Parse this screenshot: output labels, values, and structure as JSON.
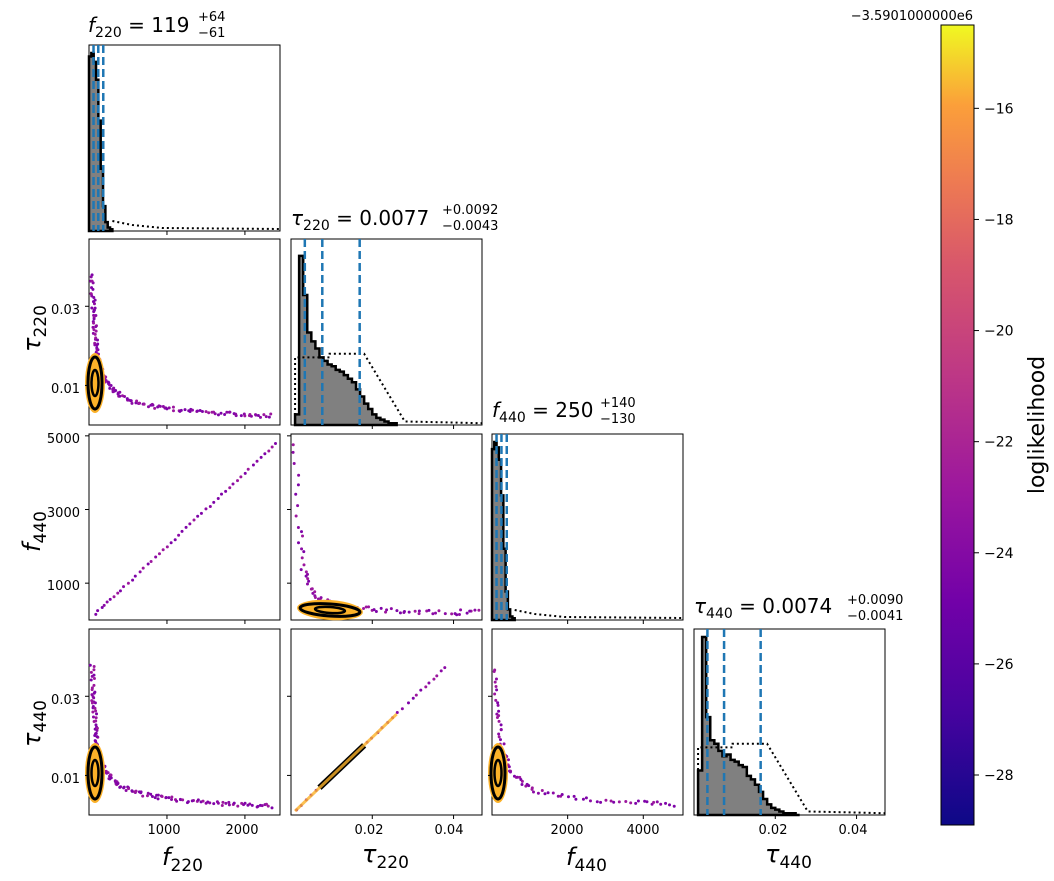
{
  "figure": {
    "colorbar": {
      "label": "loglikelihood",
      "offset_text": "−3.5901000000e6",
      "ticks": [
        "−16",
        "−18",
        "−20",
        "−22",
        "−24",
        "−26",
        "−28"
      ],
      "tick_values": [
        -16,
        -18,
        -20,
        -22,
        -24,
        -26,
        -28
      ],
      "range": [
        -28.9,
        -14.5
      ],
      "colormap": "plasma"
    },
    "axis_labels": {
      "f220_base": "f",
      "f220_sub": "220",
      "tau220_base": "τ",
      "tau220_sub": "220",
      "f440_base": "f",
      "f440_sub": "440",
      "tau440_base": "τ",
      "tau440_sub": "440"
    },
    "titles": {
      "f220": {
        "base": "f",
        "sub": "220",
        "eq": " = ",
        "value": "119",
        "plus": "+64",
        "minus": "−61"
      },
      "tau220": {
        "base": "τ",
        "sub": "220",
        "eq": " = ",
        "value": "0.0077",
        "plus": "+0.0092",
        "minus": "−0.0043"
      },
      "f440": {
        "base": "f",
        "sub": "440",
        "eq": " = ",
        "value": "250",
        "plus": "+140",
        "minus": "−130"
      },
      "tau440": {
        "base": "τ",
        "sub": "440",
        "eq": " = ",
        "value": "0.0074",
        "plus": "+0.0090",
        "minus": "−0.0041"
      }
    },
    "tick_labels": {
      "f220_x": [
        "1000",
        "2000"
      ],
      "tau220_x": [
        "0.02",
        "0.04"
      ],
      "f440_x": [
        "2000",
        "4000"
      ],
      "tau440_x": [
        "0.02",
        "0.04"
      ],
      "tau220_y": [
        "0.03",
        "0.01"
      ],
      "f440_y": [
        "5000",
        "3000",
        "1000"
      ],
      "tau440_y": [
        "0.03",
        "0.01"
      ]
    }
  },
  "chart_data": {
    "type": "corner",
    "parameters": [
      "f220",
      "tau220",
      "f440",
      "tau440"
    ],
    "ranges": {
      "f220": [
        0,
        2450
      ],
      "tau220": [
        0.0,
        0.047
      ],
      "f440": [
        0,
        5050
      ],
      "tau440": [
        0.0,
        0.047
      ]
    },
    "medians": {
      "f220": 119,
      "tau220": 0.0077,
      "f440": 250,
      "tau440": 0.0074
    },
    "credible_intervals": {
      "f220": [
        58,
        183
      ],
      "tau220": [
        0.0034,
        0.0169
      ],
      "f440": [
        120,
        390
      ],
      "tau440": [
        0.0033,
        0.0164
      ]
    },
    "posterior_hist": {
      "f220": {
        "bins": [
          0,
          30,
          60,
          90,
          120,
          150,
          180,
          210,
          240,
          270,
          300
        ],
        "counts": [
          0.98,
          1.0,
          0.95,
          0.85,
          0.62,
          0.35,
          0.14,
          0.05,
          0.02,
          0.01
        ]
      },
      "tau220": {
        "bins": [
          0.001,
          0.002,
          0.003,
          0.004,
          0.005,
          0.006,
          0.007,
          0.008,
          0.009,
          0.01,
          0.011,
          0.012,
          0.013,
          0.014,
          0.015,
          0.016,
          0.017,
          0.018,
          0.019,
          0.02,
          0.021,
          0.022,
          0.023,
          0.024,
          0.025,
          0.026
        ],
        "counts": [
          0.06,
          0.95,
          0.73,
          0.52,
          0.47,
          0.43,
          0.38,
          0.36,
          0.34,
          0.33,
          0.31,
          0.3,
          0.28,
          0.26,
          0.24,
          0.2,
          0.16,
          0.12,
          0.09,
          0.06,
          0.04,
          0.03,
          0.02,
          0.01,
          0.01
        ]
      },
      "f440": {
        "bins": [
          0,
          60,
          120,
          180,
          240,
          300,
          360,
          420,
          480,
          540,
          600
        ],
        "counts": [
          0.96,
          1.0,
          0.97,
          0.9,
          0.7,
          0.4,
          0.16,
          0.06,
          0.02,
          0.01
        ]
      },
      "tau440": {
        "bins": [
          0.001,
          0.002,
          0.003,
          0.004,
          0.005,
          0.006,
          0.007,
          0.008,
          0.009,
          0.01,
          0.011,
          0.012,
          0.013,
          0.014,
          0.015,
          0.016,
          0.017,
          0.018,
          0.019,
          0.02,
          0.021,
          0.022,
          0.023,
          0.024,
          0.025,
          0.026
        ],
        "counts": [
          0.25,
          1.0,
          0.55,
          0.42,
          0.4,
          0.36,
          0.33,
          0.34,
          0.31,
          0.3,
          0.28,
          0.27,
          0.22,
          0.2,
          0.17,
          0.13,
          0.09,
          0.06,
          0.04,
          0.03,
          0.02,
          0.01,
          0.01,
          0.01,
          0.0
        ]
      }
    },
    "prior_hist": {
      "tau220": {
        "bins": [
          0.001,
          0.0095,
          0.018
        ],
        "counts": [
          0.38,
          0.4
        ]
      },
      "tau440": {
        "bins": [
          0.001,
          0.0095,
          0.018
        ],
        "counts": [
          0.38,
          0.4
        ]
      }
    },
    "scatter_samples": {
      "tau220_vs_f220": [
        [
          40,
          0.038
        ],
        [
          50,
          0.033
        ],
        [
          60,
          0.029
        ],
        [
          70,
          0.026
        ],
        [
          85,
          0.022
        ],
        [
          100,
          0.019
        ],
        [
          130,
          0.016
        ],
        [
          170,
          0.013
        ],
        [
          220,
          0.011
        ],
        [
          300,
          0.009
        ],
        [
          400,
          0.0075
        ],
        [
          550,
          0.006
        ],
        [
          700,
          0.0052
        ],
        [
          900,
          0.0045
        ],
        [
          1100,
          0.004
        ],
        [
          1350,
          0.0035
        ],
        [
          1600,
          0.003
        ],
        [
          1850,
          0.0027
        ],
        [
          2100,
          0.0025
        ],
        [
          2350,
          0.0023
        ]
      ],
      "f440_vs_f220": [
        [
          80,
          160
        ],
        [
          400,
          800
        ],
        [
          800,
          1600
        ],
        [
          1200,
          2400
        ],
        [
          1600,
          3200
        ],
        [
          2000,
          4000
        ],
        [
          2400,
          4800
        ]
      ],
      "f440_vs_tau220": [
        [
          0.001,
          4800
        ],
        [
          0.002,
          2500
        ],
        [
          0.003,
          1400
        ],
        [
          0.005,
          800
        ],
        [
          0.008,
          500
        ],
        [
          0.012,
          380
        ],
        [
          0.018,
          300
        ],
        [
          0.025,
          260
        ],
        [
          0.032,
          230
        ],
        [
          0.04,
          210
        ],
        [
          0.046,
          200
        ]
      ],
      "tau440_vs_tau220": [
        [
          0.0,
          0.0
        ],
        [
          0.01,
          0.0098
        ],
        [
          0.02,
          0.0196
        ],
        [
          0.03,
          0.0294
        ],
        [
          0.038,
          0.0373
        ]
      ],
      "tau440_vs_f440": [
        [
          60,
          0.037
        ],
        [
          120,
          0.028
        ],
        [
          200,
          0.022
        ],
        [
          300,
          0.016
        ],
        [
          500,
          0.011
        ],
        [
          800,
          0.008
        ],
        [
          1200,
          0.006
        ],
        [
          2000,
          0.0045
        ],
        [
          3000,
          0.0035
        ],
        [
          4000,
          0.003
        ],
        [
          4800,
          0.0027
        ]
      ]
    }
  }
}
